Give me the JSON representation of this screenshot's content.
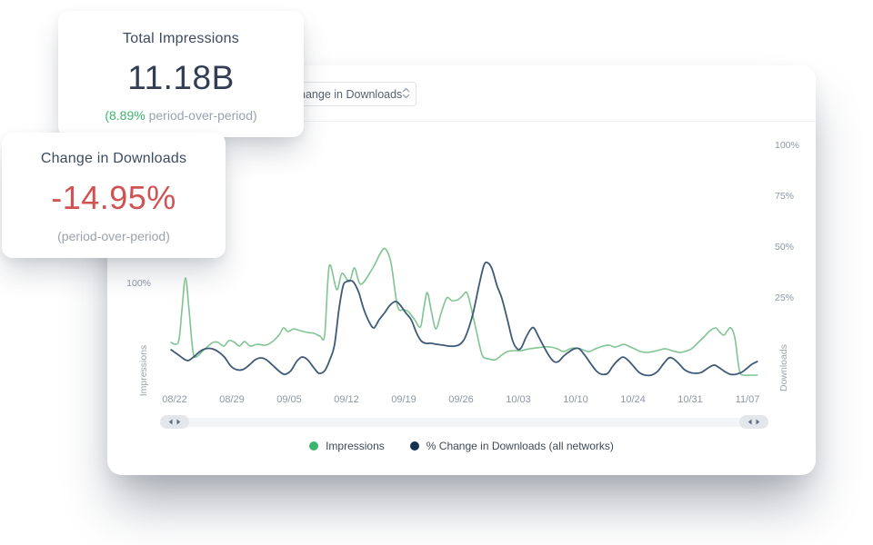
{
  "cards": {
    "impressions": {
      "title": "Total Impressions",
      "value": "11.18B",
      "delta_value": "(8.89%",
      "delta_rest": " period-over-period)"
    },
    "downloads": {
      "title": "Change in Downloads",
      "value": "-14.95%",
      "subtext": "(period-over-period)"
    }
  },
  "toolbar": {
    "metric_select_value": "Change in Downloads"
  },
  "colors": {
    "positive_green": "#3cb56c",
    "negative_red": "#d05252",
    "impressions_line": "#7fc492",
    "downloads_line": "#3e5a76",
    "legend_green_dot": "#3cb56c",
    "legend_navy_dot": "#16304f"
  },
  "chart_data": {
    "type": "line",
    "x_ticks": [
      "08/22",
      "08/29",
      "09/05",
      "09/12",
      "09/19",
      "09/26",
      "10/03",
      "10/10",
      "10/24",
      "10/31",
      "11/07"
    ],
    "left_axis": {
      "title": "Impressions",
      "ticks": [
        "100%"
      ]
    },
    "right_axis": {
      "title": "Downloads",
      "ticks": [
        "100%",
        "75%",
        "50%",
        "25%"
      ]
    },
    "legend": [
      {
        "label": "Impressions",
        "color": "#3cb56c"
      },
      {
        "label": "% Change in Downloads (all networks)",
        "color": "#16304f"
      }
    ],
    "series": [
      {
        "name": "Impressions",
        "axis": "left",
        "color": "#7fc492",
        "unit": "%",
        "points": [
          [
            -0.06,
            44.9
          ],
          [
            0.02,
            43.2
          ],
          [
            0.08,
            48.3
          ],
          [
            0.13,
            76.3
          ],
          [
            0.19,
            105.1
          ],
          [
            0.25,
            76.3
          ],
          [
            0.32,
            36.4
          ],
          [
            0.38,
            31.4
          ],
          [
            0.48,
            36.4
          ],
          [
            0.57,
            40.7
          ],
          [
            0.67,
            44.9
          ],
          [
            0.76,
            44.9
          ],
          [
            0.86,
            41.5
          ],
          [
            0.95,
            46.6
          ],
          [
            1.05,
            44.9
          ],
          [
            1.13,
            41.5
          ],
          [
            1.22,
            45.8
          ],
          [
            1.32,
            41.5
          ],
          [
            1.44,
            43.2
          ],
          [
            1.59,
            42.4
          ],
          [
            1.71,
            45.8
          ],
          [
            1.83,
            52.5
          ],
          [
            1.9,
            58.5
          ],
          [
            1.98,
            55.1
          ],
          [
            2.08,
            57.6
          ],
          [
            2.19,
            55.9
          ],
          [
            2.32,
            54.2
          ],
          [
            2.44,
            53.4
          ],
          [
            2.54,
            50.8
          ],
          [
            2.62,
            52.5
          ],
          [
            2.7,
            116.1
          ],
          [
            2.83,
            94.1
          ],
          [
            2.92,
            109.3
          ],
          [
            3.05,
            101.7
          ],
          [
            3.14,
            114.4
          ],
          [
            3.25,
            99.2
          ],
          [
            3.46,
            114.4
          ],
          [
            3.59,
            128
          ],
          [
            3.68,
            132.2
          ],
          [
            3.78,
            118.6
          ],
          [
            3.89,
            78.8
          ],
          [
            4,
            75.4
          ],
          [
            4.08,
            73.7
          ],
          [
            4.19,
            66.1
          ],
          [
            4.29,
            59.3
          ],
          [
            4.35,
            76.3
          ],
          [
            4.41,
            91.5
          ],
          [
            4.48,
            74.6
          ],
          [
            4.56,
            57.6
          ],
          [
            4.65,
            72
          ],
          [
            4.75,
            86.4
          ],
          [
            4.84,
            83.9
          ],
          [
            4.94,
            84.7
          ],
          [
            5.02,
            88.1
          ],
          [
            5.1,
            91.5
          ],
          [
            5.17,
            78.8
          ],
          [
            5.27,
            55.1
          ],
          [
            5.37,
            33.1
          ],
          [
            5.48,
            29.7
          ],
          [
            5.6,
            28.8
          ],
          [
            5.71,
            33.1
          ],
          [
            5.81,
            36.4
          ],
          [
            5.94,
            37.3
          ],
          [
            6.05,
            37.3
          ],
          [
            6.19,
            39
          ],
          [
            6.32,
            39.8
          ],
          [
            6.44,
            40.7
          ],
          [
            6.56,
            40.7
          ],
          [
            6.68,
            39
          ],
          [
            6.79,
            36.4
          ],
          [
            6.9,
            39
          ],
          [
            6.98,
            39.8
          ],
          [
            7.08,
            39
          ],
          [
            7.16,
            37.3
          ],
          [
            7.24,
            36.4
          ],
          [
            7.35,
            39
          ],
          [
            7.48,
            41.5
          ],
          [
            7.59,
            42.4
          ],
          [
            7.67,
            40.7
          ],
          [
            7.75,
            41.5
          ],
          [
            7.84,
            43.2
          ],
          [
            7.92,
            41.5
          ],
          [
            8.03,
            39
          ],
          [
            8.13,
            36.4
          ],
          [
            8.24,
            35.6
          ],
          [
            8.35,
            36.4
          ],
          [
            8.48,
            38.1
          ],
          [
            8.57,
            39
          ],
          [
            8.68,
            37.3
          ],
          [
            8.81,
            35.6
          ],
          [
            8.9,
            36.4
          ],
          [
            9.02,
            39
          ],
          [
            9.14,
            44.9
          ],
          [
            9.24,
            50
          ],
          [
            9.33,
            55.1
          ],
          [
            9.44,
            58.5
          ],
          [
            9.52,
            54.2
          ],
          [
            9.59,
            51.7
          ],
          [
            9.65,
            55.9
          ],
          [
            9.71,
            58.5
          ],
          [
            9.78,
            49.2
          ],
          [
            9.86,
            18.6
          ],
          [
            9.94,
            14.4
          ],
          [
            10.05,
            14.4
          ],
          [
            10.17,
            14.4
          ]
        ]
      },
      {
        "name": "% Change in Downloads (all networks)",
        "axis": "right",
        "color": "#3e5a76",
        "unit": "%",
        "points": [
          [
            -0.06,
            -0.7
          ],
          [
            0.05,
            -2.9
          ],
          [
            0.16,
            -5.2
          ],
          [
            0.24,
            -6
          ],
          [
            0.33,
            -4.3
          ],
          [
            0.44,
            -1.6
          ],
          [
            0.54,
            -0.2
          ],
          [
            0.65,
            -0.2
          ],
          [
            0.76,
            -1.6
          ],
          [
            0.87,
            -4.3
          ],
          [
            0.98,
            -8.7
          ],
          [
            1.08,
            -10.5
          ],
          [
            1.19,
            -10.5
          ],
          [
            1.3,
            -8.3
          ],
          [
            1.41,
            -5.6
          ],
          [
            1.51,
            -4.7
          ],
          [
            1.6,
            -5.6
          ],
          [
            1.71,
            -8.3
          ],
          [
            1.83,
            -11.4
          ],
          [
            1.92,
            -12.8
          ],
          [
            2.03,
            -11
          ],
          [
            2.13,
            -6.5
          ],
          [
            2.22,
            -4.3
          ],
          [
            2.32,
            -5.6
          ],
          [
            2.43,
            -9.6
          ],
          [
            2.52,
            -12.3
          ],
          [
            2.62,
            -11
          ],
          [
            2.71,
            -5.6
          ],
          [
            2.79,
            1.6
          ],
          [
            2.87,
            19.5
          ],
          [
            2.94,
            30.7
          ],
          [
            3,
            32.9
          ],
          [
            3.08,
            33.4
          ],
          [
            3.14,
            32
          ],
          [
            3.22,
            27.1
          ],
          [
            3.3,
            19.5
          ],
          [
            3.4,
            12.8
          ],
          [
            3.48,
            10.1
          ],
          [
            3.57,
            14.1
          ],
          [
            3.67,
            17.7
          ],
          [
            3.76,
            21.3
          ],
          [
            3.86,
            23.1
          ],
          [
            3.94,
            21.3
          ],
          [
            4.03,
            17.7
          ],
          [
            4.13,
            14.1
          ],
          [
            4.22,
            7.8
          ],
          [
            4.3,
            3.8
          ],
          [
            4.38,
            2.5
          ],
          [
            4.48,
            2.5
          ],
          [
            4.57,
            2
          ],
          [
            4.68,
            1.6
          ],
          [
            4.79,
            1.1
          ],
          [
            4.89,
            1.1
          ],
          [
            4.98,
            2
          ],
          [
            5.06,
            4.7
          ],
          [
            5.14,
            10.5
          ],
          [
            5.22,
            18.6
          ],
          [
            5.32,
            32
          ],
          [
            5.4,
            41
          ],
          [
            5.46,
            42.3
          ],
          [
            5.54,
            39.2
          ],
          [
            5.63,
            30.7
          ],
          [
            5.71,
            24.9
          ],
          [
            5.81,
            14.1
          ],
          [
            5.9,
            3.8
          ],
          [
            5.98,
            -0.2
          ],
          [
            6.05,
            0.2
          ],
          [
            6.13,
            5.2
          ],
          [
            6.21,
            9.2
          ],
          [
            6.27,
            10.1
          ],
          [
            6.35,
            6
          ],
          [
            6.44,
            1.1
          ],
          [
            6.54,
            -3.8
          ],
          [
            6.62,
            -6.5
          ],
          [
            6.7,
            -6.5
          ],
          [
            6.79,
            -3.8
          ],
          [
            6.89,
            -1.6
          ],
          [
            6.98,
            -0.2
          ],
          [
            7.06,
            -0.2
          ],
          [
            7.16,
            -3.4
          ],
          [
            7.27,
            -7.8
          ],
          [
            7.37,
            -11.4
          ],
          [
            7.46,
            -12.8
          ],
          [
            7.56,
            -12.3
          ],
          [
            7.65,
            -8.7
          ],
          [
            7.75,
            -5.6
          ],
          [
            7.83,
            -4.3
          ],
          [
            7.92,
            -6
          ],
          [
            8.02,
            -9.2
          ],
          [
            8.11,
            -11.9
          ],
          [
            8.21,
            -13.2
          ],
          [
            8.32,
            -13.2
          ],
          [
            8.43,
            -11.4
          ],
          [
            8.54,
            -7.4
          ],
          [
            8.63,
            -4.7
          ],
          [
            8.71,
            -5.2
          ],
          [
            8.81,
            -7.8
          ],
          [
            8.9,
            -10.5
          ],
          [
            9,
            -11.9
          ],
          [
            9.1,
            -12.3
          ],
          [
            9.19,
            -11.9
          ],
          [
            9.29,
            -10.1
          ],
          [
            9.37,
            -8.7
          ],
          [
            9.43,
            -8.3
          ],
          [
            9.51,
            -9.6
          ],
          [
            9.6,
            -11.4
          ],
          [
            9.7,
            -12.8
          ],
          [
            9.79,
            -12.8
          ],
          [
            9.89,
            -11.9
          ],
          [
            9.98,
            -10.1
          ],
          [
            10.08,
            -7.8
          ],
          [
            10.17,
            -6.5
          ]
        ]
      }
    ]
  }
}
